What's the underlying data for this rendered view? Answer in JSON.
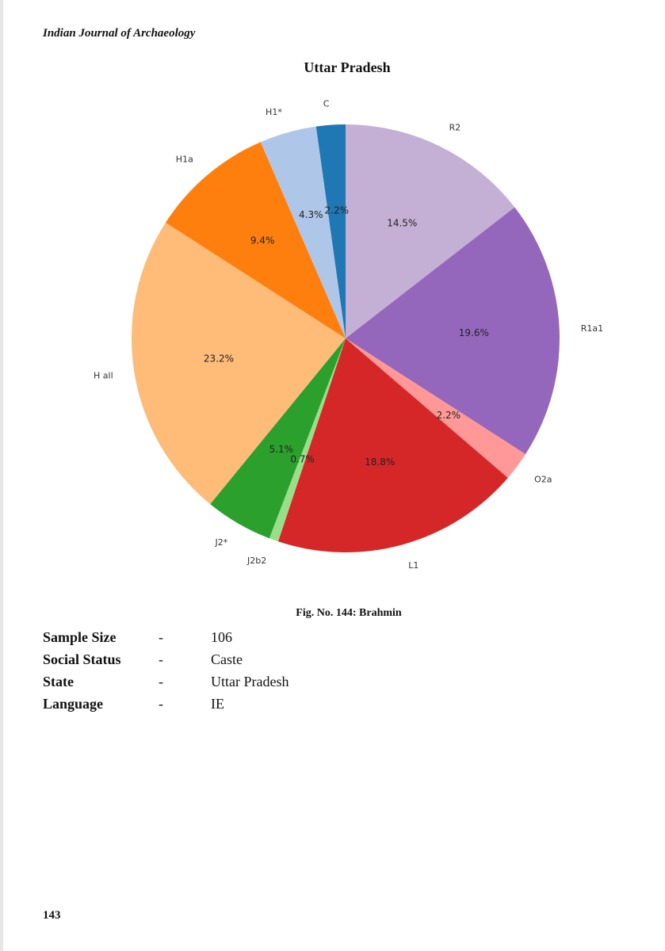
{
  "header": {
    "journal": "Indian Journal of Archaeology"
  },
  "chart_data": {
    "type": "pie",
    "title": "Uttar Pradesh",
    "start_angle_deg": 90,
    "direction": "clockwise",
    "slices": [
      {
        "label": "R2",
        "value": 14.5,
        "pct_label": "14.5%",
        "color": "#c5b0d5"
      },
      {
        "label": "R1a1",
        "value": 19.6,
        "pct_label": "19.6%",
        "color": "#9467bd"
      },
      {
        "label": "O2a",
        "value": 2.2,
        "pct_label": "2.2%",
        "color": "#ff9896"
      },
      {
        "label": "L1",
        "value": 18.8,
        "pct_label": "18.8%",
        "color": "#d62728"
      },
      {
        "label": "J2b2",
        "value": 0.7,
        "pct_label": "0.7%",
        "color": "#98df8a"
      },
      {
        "label": "J2*",
        "value": 5.1,
        "pct_label": "5.1%",
        "color": "#2ca02c"
      },
      {
        "label": "H all",
        "value": 23.2,
        "pct_label": "23.2%",
        "color": "#ffbb78"
      },
      {
        "label": "H1a",
        "value": 9.4,
        "pct_label": "9.4%",
        "color": "#ff7f0e"
      },
      {
        "label": "H1*",
        "value": 4.3,
        "pct_label": "4.3%",
        "color": "#aec7e8"
      },
      {
        "label": "C",
        "value": 2.2,
        "pct_label": "2.2%",
        "color": "#1f77b4"
      }
    ]
  },
  "figure": {
    "caption": "Fig. No. 144: Brahmin"
  },
  "info": [
    {
      "label": "Sample Size",
      "dash": "-",
      "value": "106"
    },
    {
      "label": "Social Status",
      "dash": "-",
      "value": "Caste"
    },
    {
      "label": "State",
      "dash": "-",
      "value": "Uttar Pradesh"
    },
    {
      "label": "Language",
      "dash": "-",
      "value": "IE"
    }
  ],
  "footer": {
    "page_number": "143"
  }
}
